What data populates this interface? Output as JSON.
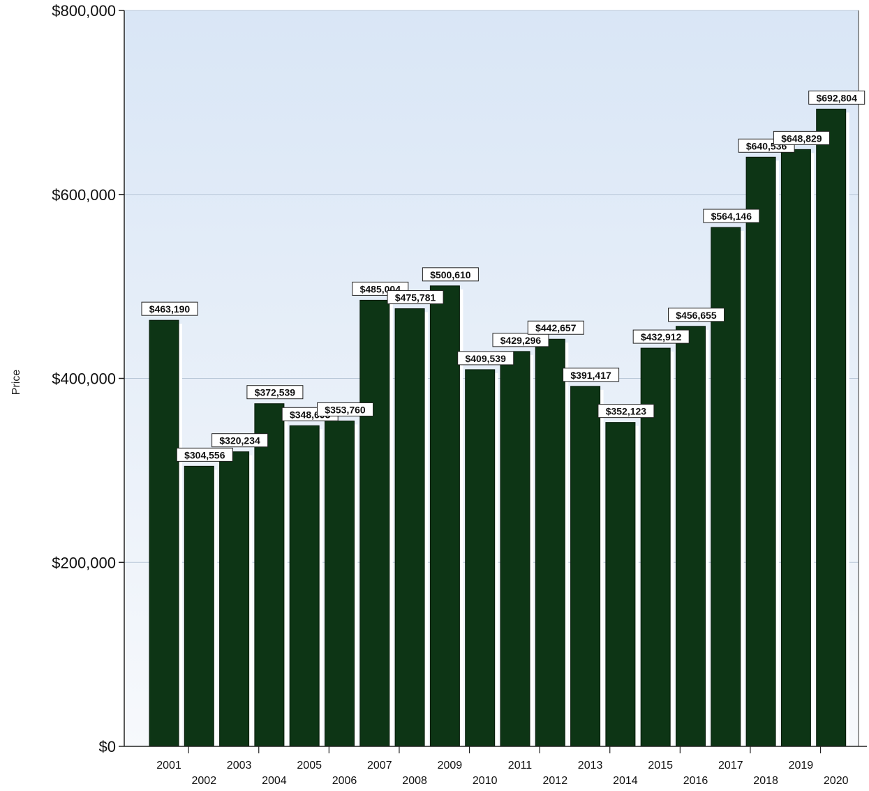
{
  "chart_data": {
    "type": "bar",
    "title": "",
    "xlabel": "",
    "ylabel": "Price",
    "ylim": [
      0,
      800000
    ],
    "yticks": [
      {
        "value": 0,
        "label": "$0"
      },
      {
        "value": 200000,
        "label": "$200,000"
      },
      {
        "value": 400000,
        "label": "$400,000"
      },
      {
        "value": 600000,
        "label": "$600,000"
      },
      {
        "value": 800000,
        "label": "$800,000"
      }
    ],
    "grid": true,
    "legend": "none",
    "bar_color": "#0d3515",
    "background_color": "#dfe9f6",
    "categories": [
      "2001",
      "2002",
      "2003",
      "2004",
      "2005",
      "2006",
      "2007",
      "2008",
      "2009",
      "2010",
      "2011",
      "2012",
      "2013",
      "2014",
      "2015",
      "2016",
      "2017",
      "2018",
      "2019",
      "2020"
    ],
    "values": [
      463190,
      304556,
      320234,
      372539,
      348605,
      353760,
      485004,
      475781,
      500610,
      409539,
      429296,
      442657,
      391417,
      352123,
      432912,
      456655,
      564146,
      640536,
      648829,
      692804
    ],
    "data_labels": [
      "$463,190",
      "$304,556",
      "$320,234",
      "$372,539",
      "$348,605",
      "$353,760",
      "$485,004",
      "$475,781",
      "$500,610",
      "$409,539",
      "$429,296",
      "$442,657",
      "$391,417",
      "$352,123",
      "$432,912",
      "$456,655",
      "$564,146",
      "$640,536",
      "$648,829",
      "$692,804"
    ]
  }
}
